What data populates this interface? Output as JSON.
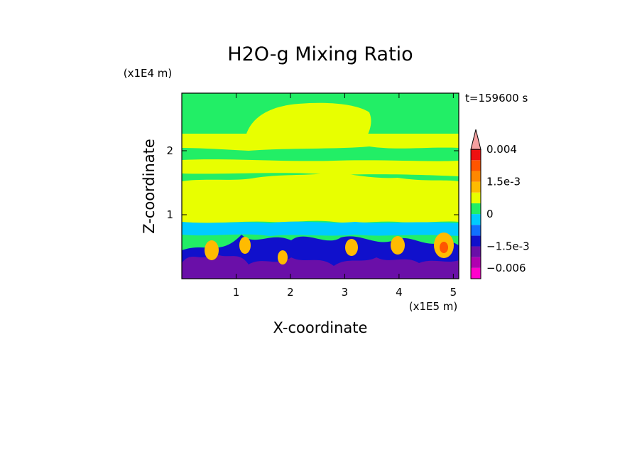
{
  "chart_data": {
    "type": "heatmap",
    "title": "H2O-g Mixing Ratio",
    "xlabel": "X-coordinate",
    "ylabel": "Z-coordinate",
    "x_unit": "(x1E5 m)",
    "y_unit": "(x1E4 m)",
    "time_label": "t=159600 s",
    "xlim": [
      0,
      5.1
    ],
    "ylim": [
      0,
      2.9
    ],
    "xticks": [
      {
        "value": 1,
        "label": "1"
      },
      {
        "value": 2,
        "label": "2"
      },
      {
        "value": 3,
        "label": "3"
      },
      {
        "value": 4,
        "label": "4"
      },
      {
        "value": 5,
        "label": "5"
      }
    ],
    "yticks": [
      {
        "value": 1,
        "label": "1"
      },
      {
        "value": 2,
        "label": "2"
      }
    ],
    "colorbar": {
      "levels": [
        -0.009,
        -0.006,
        -0.003,
        -0.0015,
        -0.001,
        -0.0005,
        0,
        0.0005,
        0.001,
        0.0015,
        0.002,
        0.003,
        0.004
      ],
      "colors": [
        "#ff00cc",
        "#b000b0",
        "#6a0fa8",
        "#1010cc",
        "#1070ff",
        "#00ccff",
        "#22ee66",
        "#e8ff00",
        "#ffbb00",
        "#ff8800",
        "#ff5500",
        "#ee1111",
        "#f5a0a0"
      ],
      "extend": "max",
      "labels": [
        {
          "value": 0.004,
          "text": "0.004"
        },
        {
          "value": 0.0015,
          "text": "1.5e-3"
        },
        {
          "value": 0,
          "text": "0"
        },
        {
          "value": -0.0015,
          "text": "−1.5e-3"
        },
        {
          "value": -0.006,
          "text": "−0.006"
        }
      ]
    },
    "field_colors": {
      "background": "#22ee66",
      "moist": "#e8ff00",
      "cyan": "#00ccff",
      "lightblue": "#1070ff",
      "blue": "#1010cc",
      "purple": "#6a0fa8",
      "orange": "#ffbb00",
      "red": "#ff5500"
    }
  }
}
